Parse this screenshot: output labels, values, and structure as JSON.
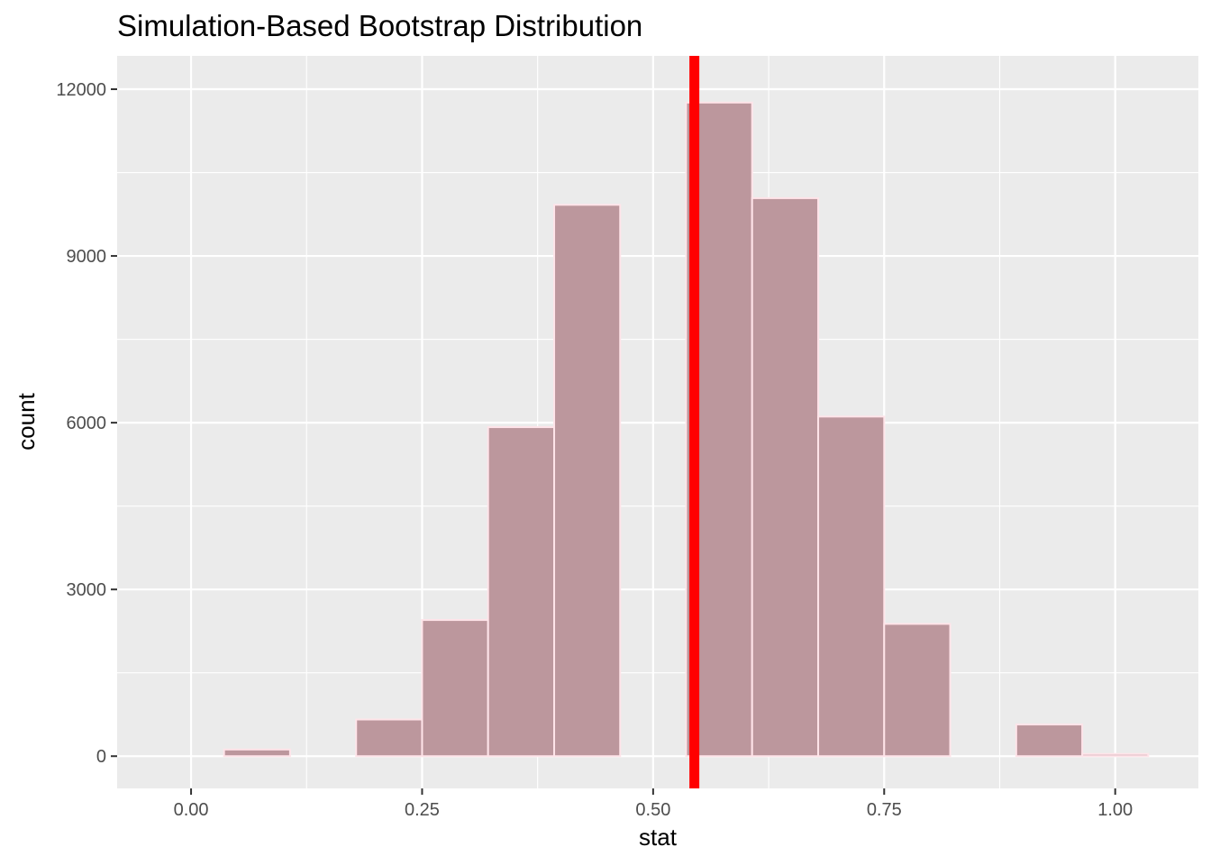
{
  "chart_data": {
    "type": "bar",
    "title": "Simulation-Based Bootstrap Distribution",
    "xlabel": "stat",
    "ylabel": "count",
    "xlim": [
      -0.08,
      1.09
    ],
    "ylim": [
      -580,
      12600
    ],
    "x_ticks": [
      0.0,
      0.25,
      0.5,
      0.75,
      1.0
    ],
    "x_tick_labels": [
      "0.00",
      "0.25",
      "0.50",
      "0.75",
      "1.00"
    ],
    "y_ticks": [
      0,
      3000,
      6000,
      9000,
      12000
    ],
    "y_tick_labels": [
      "0",
      "3000",
      "6000",
      "9000",
      "12000"
    ],
    "grid": true,
    "bin_width": 0.0714,
    "bins": [
      {
        "x_start": -0.0357,
        "x_end": 0.0357,
        "count": 0
      },
      {
        "x_start": 0.0357,
        "x_end": 0.1071,
        "count": 120
      },
      {
        "x_start": 0.1071,
        "x_end": 0.1786,
        "count": 0
      },
      {
        "x_start": 0.1786,
        "x_end": 0.25,
        "count": 660
      },
      {
        "x_start": 0.25,
        "x_end": 0.3214,
        "count": 2450
      },
      {
        "x_start": 0.3214,
        "x_end": 0.3929,
        "count": 5920
      },
      {
        "x_start": 0.3929,
        "x_end": 0.4643,
        "count": 9920
      },
      {
        "x_start": 0.4643,
        "x_end": 0.5357,
        "count": 0
      },
      {
        "x_start": 0.5357,
        "x_end": 0.6071,
        "count": 11760
      },
      {
        "x_start": 0.6071,
        "x_end": 0.6786,
        "count": 10040
      },
      {
        "x_start": 0.6786,
        "x_end": 0.75,
        "count": 6110
      },
      {
        "x_start": 0.75,
        "x_end": 0.8214,
        "count": 2380
      },
      {
        "x_start": 0.8214,
        "x_end": 0.8929,
        "count": 0
      },
      {
        "x_start": 0.8929,
        "x_end": 0.9643,
        "count": 570
      },
      {
        "x_start": 0.9643,
        "x_end": 1.0357,
        "count": 40
      }
    ],
    "reference_line": {
      "x": 0.5446,
      "color": "#ff0000"
    },
    "colors": {
      "bar_fill": "#bc979d",
      "bar_outline": "#ffe4e9",
      "panel_background": "#ebebeb",
      "grid": "#ffffff"
    }
  }
}
